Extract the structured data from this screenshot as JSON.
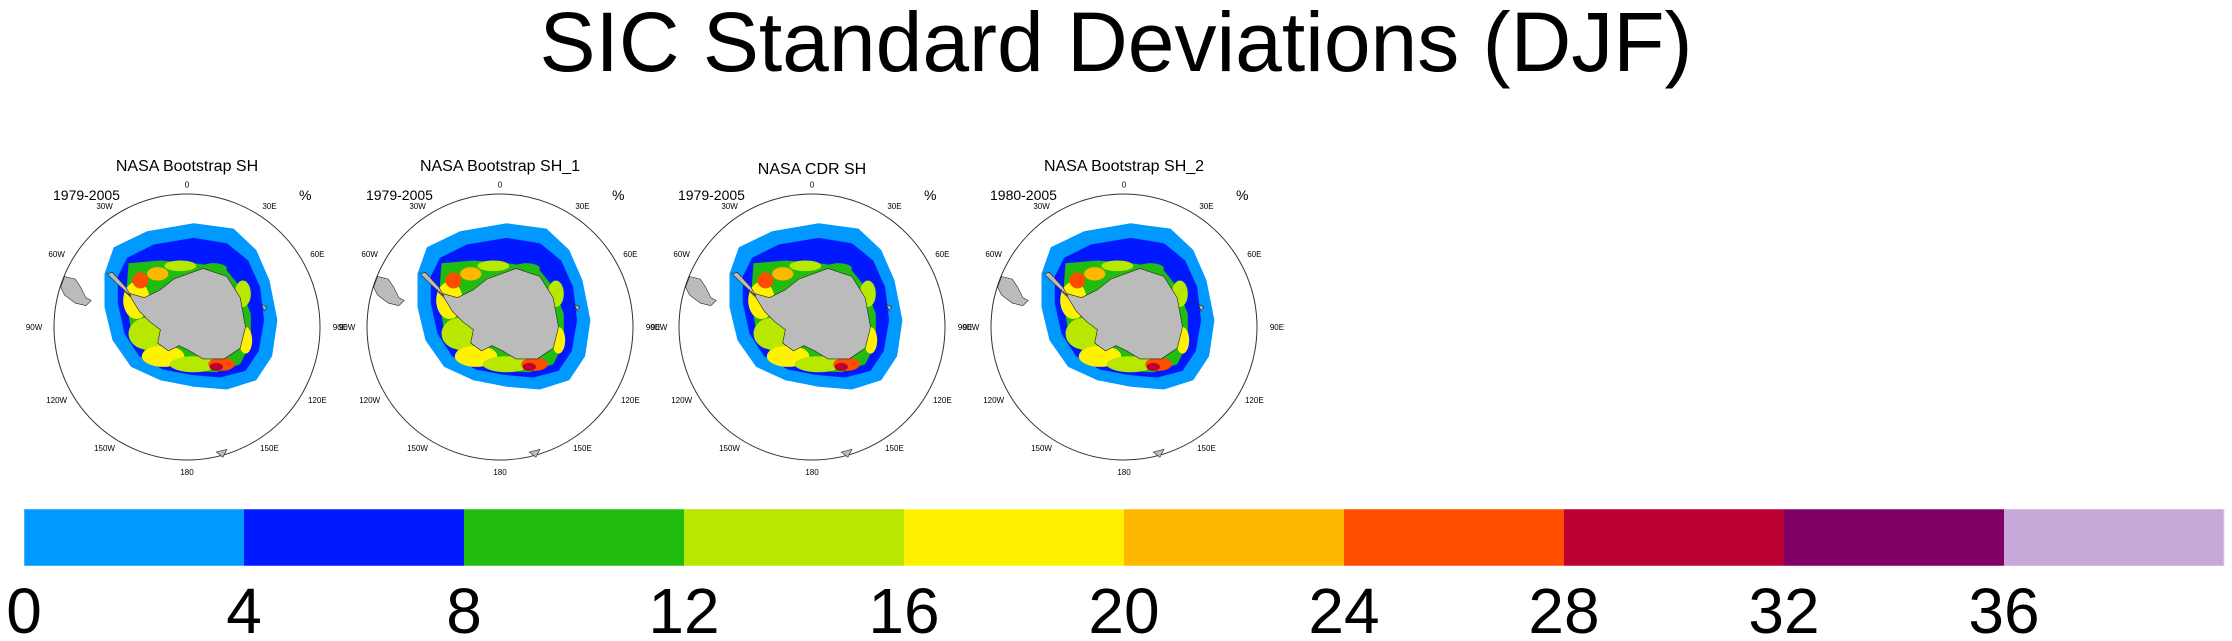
{
  "title": "SIC Standard Deviations (DJF)",
  "panels": [
    {
      "title": "NASA Bootstrap SH",
      "period": "1979-2005",
      "units": "%"
    },
    {
      "title": "NASA Bootstrap SH_1",
      "period": "1979-2005",
      "units": "%"
    },
    {
      "title": "NASA CDR SH",
      "period": "1979-2005",
      "units": "%"
    },
    {
      "title": "NASA Bootstrap SH_2",
      "period": "1980-2005",
      "units": "%"
    }
  ],
  "longitude_labels": [
    "0",
    "30E",
    "60E",
    "90E",
    "120E",
    "150E",
    "180",
    "150W",
    "120W",
    "90W",
    "60W",
    "30W"
  ],
  "colorbar": {
    "levels": [
      "0",
      "4",
      "8",
      "12",
      "16",
      "20",
      "24",
      "28",
      "32",
      "36"
    ],
    "colors": [
      "#0099ff",
      "#0019ff",
      "#22bb0f",
      "#b8e800",
      "#fff200",
      "#ffb800",
      "#ff4d00",
      "#bb0033",
      "#800066",
      "#c8a8d8"
    ]
  },
  "map_colors": {
    "land": "#bbbbbb",
    "ocean": "#ffffff",
    "sd_low": "#0099ff",
    "sd_blue": "#0019ff",
    "sd_green": "#22bb0f",
    "sd_lime": "#b8e800",
    "sd_yellow": "#fff200",
    "sd_orange": "#ffb800",
    "sd_red": "#ff4d00",
    "sd_crimson": "#bb0033"
  }
}
